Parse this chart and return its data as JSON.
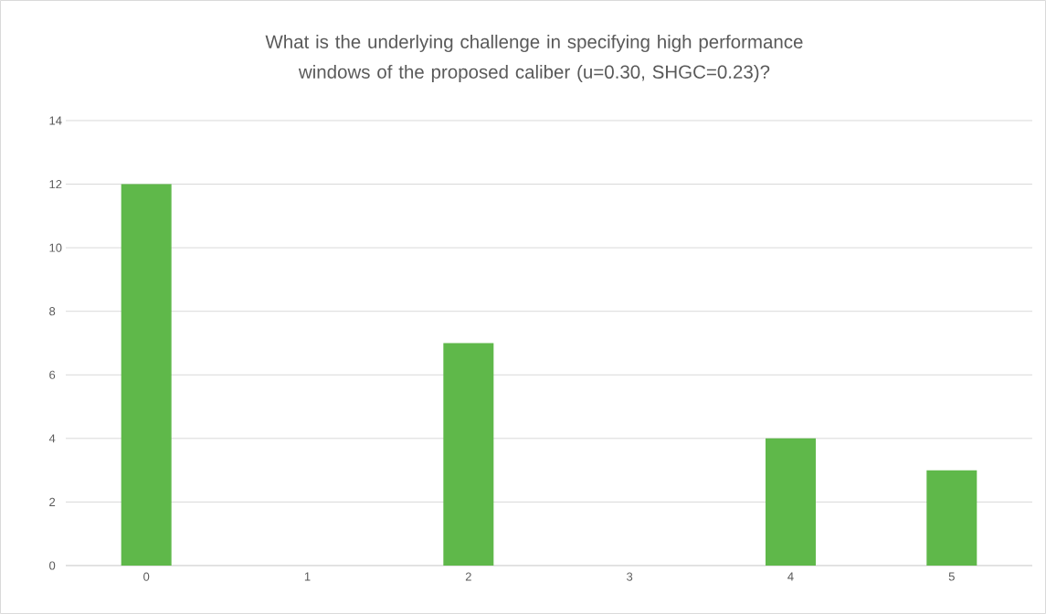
{
  "chart_data": {
    "type": "bar",
    "title": "What is the underlying challenge in specifying high performance windows of the proposed caliber (u=0.30, SHGC=0.23)?",
    "categories": [
      "0",
      "1",
      "2",
      "3",
      "4",
      "5"
    ],
    "values": [
      12,
      0,
      7,
      0,
      4,
      3
    ],
    "color": "#5fb84a",
    "ylim": [
      0,
      14
    ],
    "yticks": [
      0,
      2,
      4,
      6,
      8,
      10,
      12,
      14
    ],
    "grid": "y"
  }
}
